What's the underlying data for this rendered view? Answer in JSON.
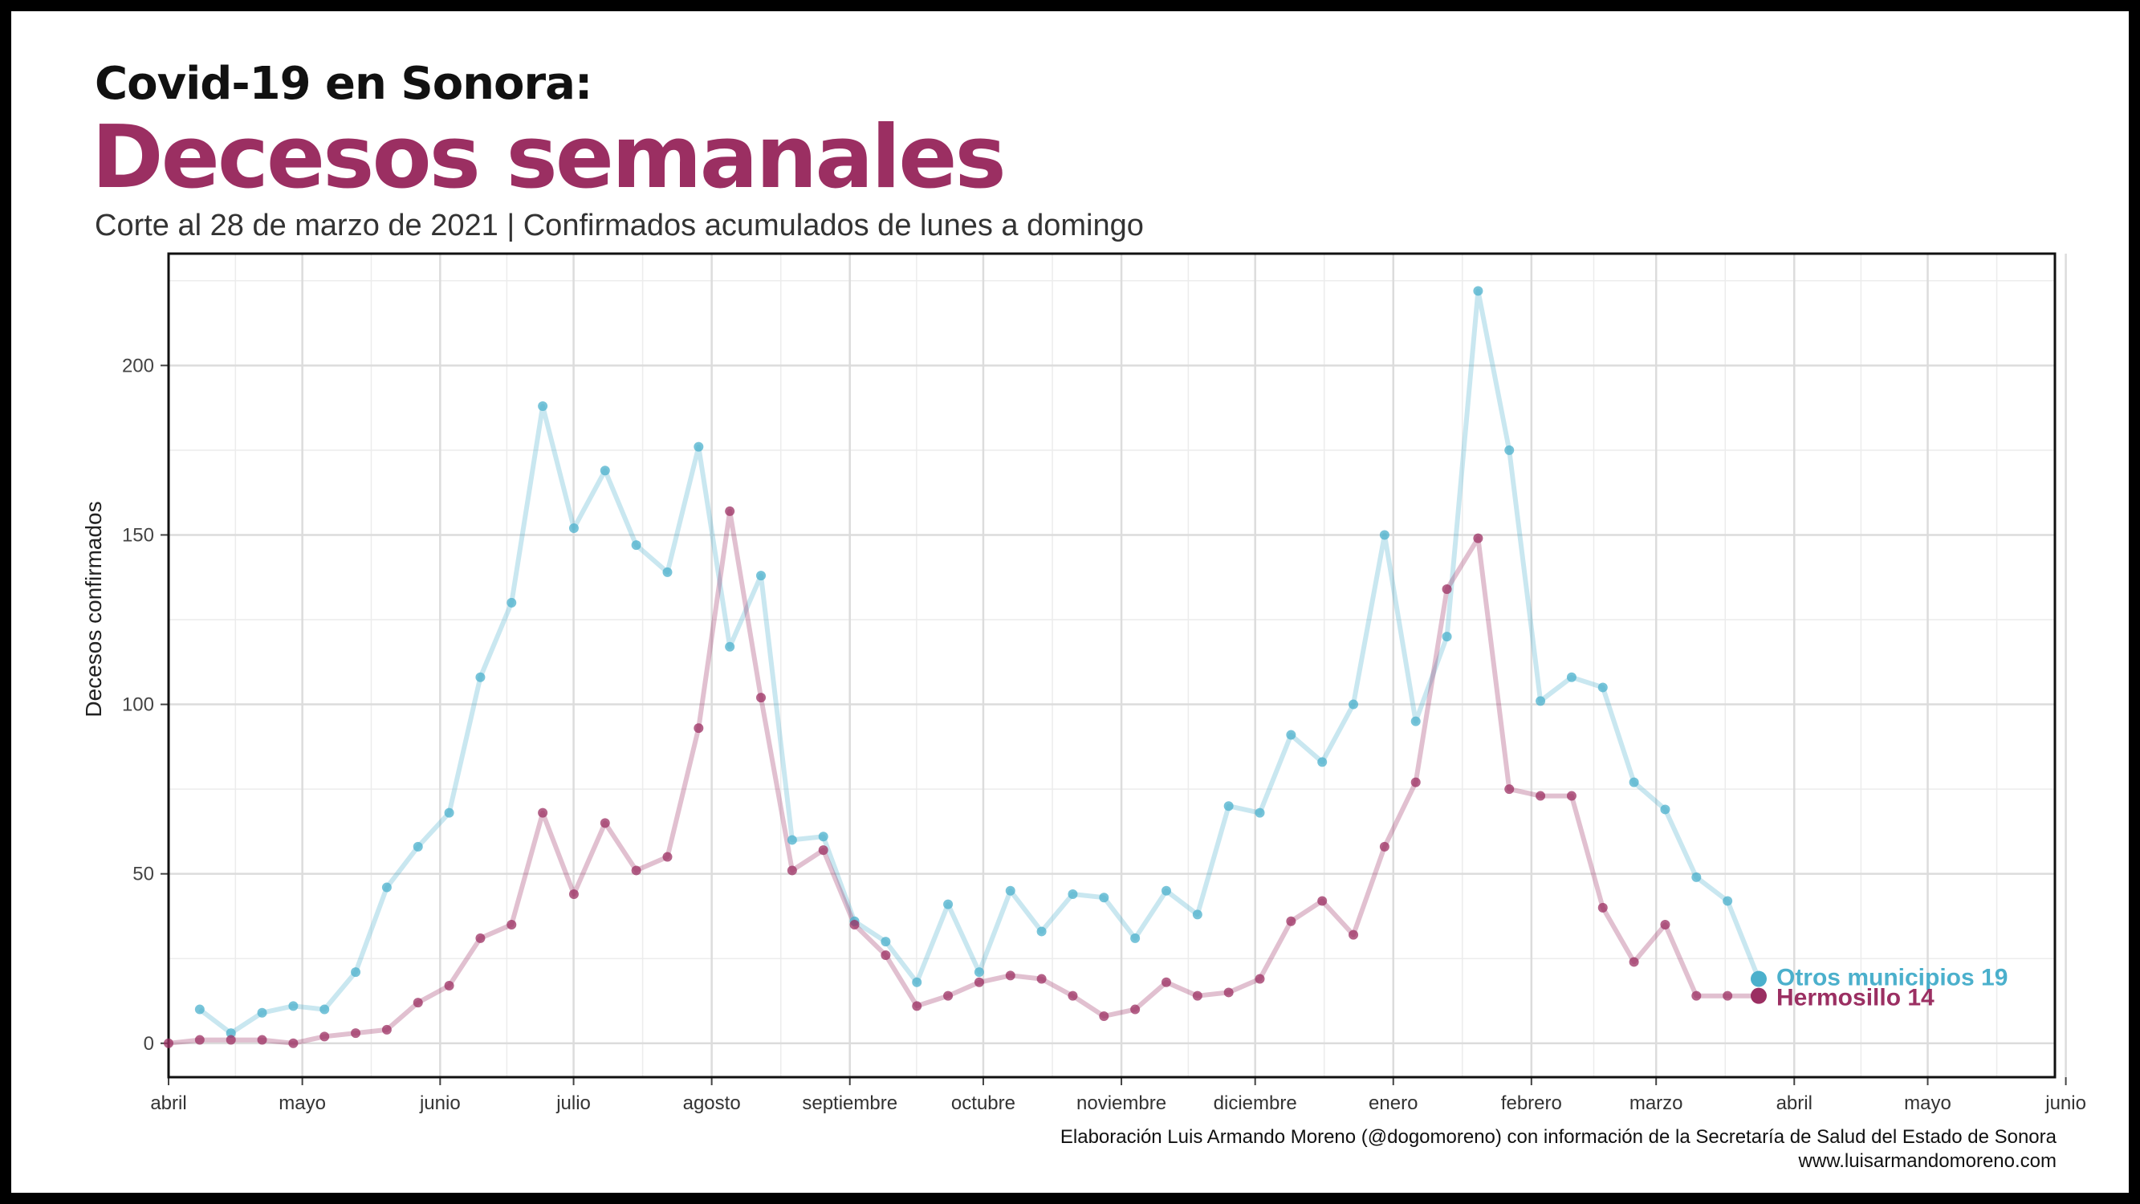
{
  "header": {
    "title": "Covid-19 en Sonora:",
    "headline": "Decesos semanales",
    "subtitle": "Corte al 28 de marzo de 2021 | Confirmados acumulados de lunes a domingo"
  },
  "caption": {
    "line1": "Elaboración Luis Armando Moreno (@dogomoreno) con información de la Secretaría de Salud del Estado de Sonora",
    "line2": "www.luisarmandomoreno.com"
  },
  "chart_data": {
    "type": "line",
    "ylabel": "Decesos confirmados",
    "xlabel": "",
    "ylim": [
      -10,
      233
    ],
    "yticks": [
      0,
      50,
      100,
      150,
      200
    ],
    "x_units": "weeks since start of April 2020",
    "xlim": [
      0,
      60.5
    ],
    "xticks": [
      {
        "label": "abril",
        "x": 0
      },
      {
        "label": "mayo",
        "x": 4.29
      },
      {
        "label": "junio",
        "x": 8.71
      },
      {
        "label": "julio",
        "x": 12.99
      },
      {
        "label": "agosto",
        "x": 17.42
      },
      {
        "label": "septiembre",
        "x": 21.85
      },
      {
        "label": "octubre",
        "x": 26.13
      },
      {
        "label": "noviembre",
        "x": 30.56
      },
      {
        "label": "diciembre",
        "x": 34.85
      },
      {
        "label": "enero",
        "x": 39.28
      },
      {
        "label": "febrero",
        "x": 43.71
      },
      {
        "label": "marzo",
        "x": 47.71
      },
      {
        "label": "abril",
        "x": 52.14
      },
      {
        "label": "mayo",
        "x": 56.42
      },
      {
        "label": "junio",
        "x": 60.85
      }
    ],
    "grid": true,
    "legend": "end-of-line labels",
    "series": [
      {
        "name": "Otros municipios",
        "color": "#4bb0cc",
        "end_label": "Otros municipios 19",
        "x": [
          1,
          2,
          3,
          4,
          5,
          6,
          7,
          8,
          9,
          10,
          11,
          12,
          13,
          14,
          15,
          16,
          17,
          18,
          19,
          20,
          21,
          22,
          23,
          24,
          25,
          26,
          27,
          28,
          29,
          30,
          31,
          32,
          33,
          34,
          35,
          36,
          37,
          38,
          39,
          40,
          41,
          42,
          43,
          44,
          45,
          46,
          47,
          48,
          49,
          50,
          51
        ],
        "values": [
          10,
          3,
          9,
          11,
          10,
          21,
          46,
          58,
          68,
          108,
          130,
          188,
          152,
          169,
          147,
          139,
          176,
          117,
          138,
          60,
          61,
          36,
          30,
          18,
          41,
          21,
          45,
          33,
          44,
          43,
          31,
          45,
          38,
          70,
          68,
          91,
          83,
          100,
          150,
          95,
          120,
          222,
          175,
          101,
          108,
          105,
          77,
          69,
          49,
          42,
          19
        ]
      },
      {
        "name": "Hermosillo",
        "color": "#9b2f62",
        "end_label": "Hermosillo 14",
        "x": [
          0,
          1,
          2,
          3,
          4,
          5,
          6,
          7,
          8,
          9,
          10,
          11,
          12,
          13,
          14,
          15,
          16,
          17,
          18,
          19,
          20,
          21,
          22,
          23,
          24,
          25,
          26,
          27,
          28,
          29,
          30,
          31,
          32,
          33,
          34,
          35,
          36,
          37,
          38,
          39,
          40,
          41,
          42,
          43,
          44,
          45,
          46,
          47,
          48,
          49,
          50,
          51
        ],
        "values": [
          0,
          1,
          1,
          1,
          0,
          2,
          3,
          4,
          12,
          17,
          31,
          35,
          68,
          44,
          65,
          51,
          55,
          93,
          157,
          102,
          51,
          57,
          35,
          26,
          11,
          14,
          18,
          20,
          19,
          14,
          8,
          10,
          18,
          14,
          15,
          19,
          36,
          42,
          32,
          58,
          77,
          134,
          149,
          75,
          73,
          73,
          40,
          24,
          35,
          14,
          14,
          14
        ]
      }
    ]
  }
}
